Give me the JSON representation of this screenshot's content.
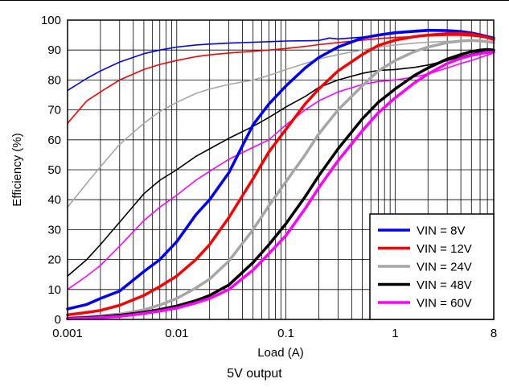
{
  "chart_data": {
    "type": "line",
    "title": "",
    "xlabel": "Load (A)",
    "ylabel": "Efficiency (%)",
    "xscale": "log",
    "xlim": [
      0.001,
      8
    ],
    "ylim": [
      0,
      100
    ],
    "grid": true,
    "legend_position": "bottom-right",
    "x_ticks": [
      {
        "value": 0.001,
        "label": "0.001"
      },
      {
        "value": 0.01,
        "label": "0.01"
      },
      {
        "value": 0.1,
        "label": "0.1"
      },
      {
        "value": 1,
        "label": "1"
      },
      {
        "value": 8,
        "label": "8"
      }
    ],
    "y_ticks": [
      0,
      10,
      20,
      30,
      40,
      50,
      60,
      70,
      80,
      90,
      100
    ],
    "series": [
      {
        "name": "VIN = 8V",
        "color": "#0000ff",
        "style": "bold",
        "x": [
          0.001,
          0.0015,
          0.002,
          0.003,
          0.005,
          0.007,
          0.01,
          0.015,
          0.02,
          0.03,
          0.05,
          0.07,
          0.1,
          0.15,
          0.2,
          0.3,
          0.5,
          0.7,
          1,
          1.5,
          2,
          3,
          4,
          5,
          6,
          7,
          8
        ],
        "y": [
          3.5,
          5,
          7,
          9.5,
          16,
          20,
          26,
          35,
          40,
          49,
          65,
          72,
          78,
          84,
          87.5,
          91,
          94,
          95,
          95.8,
          96.3,
          96.6,
          96.5,
          96.2,
          95.7,
          95.1,
          94.5,
          94
        ]
      },
      {
        "name": "VIN = 12V",
        "color": "#ff0000",
        "style": "bold",
        "x": [
          0.001,
          0.0015,
          0.002,
          0.003,
          0.005,
          0.007,
          0.01,
          0.015,
          0.02,
          0.03,
          0.05,
          0.07,
          0.1,
          0.15,
          0.2,
          0.3,
          0.5,
          0.7,
          1,
          1.5,
          2,
          3,
          4,
          5,
          6,
          7,
          8
        ],
        "y": [
          1.5,
          2.3,
          3,
          4.7,
          8,
          11,
          14.5,
          20,
          25,
          34,
          47,
          56,
          63.5,
          72,
          77,
          83,
          88.5,
          91.5,
          93.3,
          94.5,
          95,
          95.5,
          95.5,
          95.3,
          94.8,
          94.2,
          93.5
        ]
      },
      {
        "name": "VIN = 24V",
        "color": "#a6a6a6",
        "style": "bold",
        "x": [
          0.001,
          0.0015,
          0.002,
          0.003,
          0.005,
          0.007,
          0.01,
          0.015,
          0.02,
          0.03,
          0.05,
          0.07,
          0.1,
          0.15,
          0.2,
          0.3,
          0.5,
          0.7,
          1,
          1.5,
          2,
          3,
          4,
          5,
          6,
          7,
          8
        ],
        "y": [
          0.5,
          0.8,
          1.2,
          1.8,
          3.2,
          4.8,
          7,
          10.5,
          13.5,
          19.5,
          30,
          38,
          46,
          55,
          62,
          70,
          78,
          83,
          86.5,
          89.5,
          91,
          92.5,
          93,
          93.2,
          93,
          92.8,
          92.5
        ]
      },
      {
        "name": "VIN = 48V",
        "color": "#000000",
        "style": "bold",
        "x": [
          0.001,
          0.0015,
          0.002,
          0.003,
          0.005,
          0.007,
          0.01,
          0.015,
          0.02,
          0.03,
          0.05,
          0.07,
          0.1,
          0.15,
          0.2,
          0.3,
          0.5,
          0.7,
          1,
          1.5,
          2,
          3,
          4,
          5,
          6,
          7,
          8
        ],
        "y": [
          0.3,
          0.6,
          0.9,
          1.4,
          2.4,
          3.3,
          4.5,
          6.3,
          8,
          11.5,
          19,
          25,
          32,
          41,
          48,
          57,
          67,
          72.5,
          77,
          81.5,
          84,
          87,
          88.5,
          89.5,
          90,
          90.2,
          90
        ]
      },
      {
        "name": "VIN = 60V",
        "color": "#ff00ff",
        "style": "bold",
        "x": [
          0.001,
          0.0015,
          0.002,
          0.003,
          0.005,
          0.007,
          0.01,
          0.015,
          0.02,
          0.03,
          0.05,
          0.07,
          0.1,
          0.15,
          0.2,
          0.3,
          0.5,
          0.7,
          1,
          1.5,
          2,
          3,
          4,
          5,
          6,
          7,
          8
        ],
        "y": [
          0.2,
          0.4,
          0.6,
          1,
          2,
          2.8,
          3.8,
          5.5,
          7,
          10,
          16.5,
          22,
          28,
          37,
          44,
          53,
          63,
          69,
          74,
          79,
          82,
          85.5,
          87.2,
          88.2,
          88.8,
          89.2,
          89.3
        ]
      },
      {
        "name": "",
        "color": "#0000ff",
        "style": "thin",
        "x": [
          0.001,
          0.0015,
          0.002,
          0.003,
          0.005,
          0.007,
          0.01,
          0.015,
          0.02,
          0.03,
          0.05,
          0.07,
          0.1,
          0.15,
          0.2,
          0.25,
          0.3,
          0.5,
          0.7,
          1,
          1.5,
          2,
          3,
          4,
          5,
          6,
          7,
          8
        ],
        "y": [
          76.5,
          80.5,
          83,
          86,
          88.8,
          90,
          91,
          91.7,
          92,
          92.3,
          92.6,
          92.8,
          93,
          93.1,
          93.2,
          94,
          93.7,
          94.3,
          95,
          95.5,
          96,
          96.3,
          96.3,
          96,
          95.6,
          95,
          94.5,
          94
        ]
      },
      {
        "name": "",
        "color": "#ff0000",
        "style": "thin",
        "x": [
          0.001,
          0.0015,
          0.002,
          0.003,
          0.005,
          0.007,
          0.01,
          0.015,
          0.02,
          0.03,
          0.05,
          0.07,
          0.1,
          0.15,
          0.2,
          0.3,
          0.5,
          0.7,
          1,
          1.5,
          2,
          3,
          4,
          5,
          6,
          7,
          8
        ],
        "y": [
          65.5,
          73,
          76,
          80,
          83.5,
          85.2,
          86.5,
          87.8,
          88.4,
          89,
          89.6,
          90,
          90.5,
          91.2,
          91.8,
          92.5,
          93.3,
          93.8,
          94.2,
          94.5,
          94.7,
          94.9,
          94.9,
          94.7,
          94.4,
          94,
          93.5
        ]
      },
      {
        "name": "",
        "color": "#a6a6a6",
        "style": "thin",
        "x": [
          0.001,
          0.0015,
          0.002,
          0.003,
          0.005,
          0.007,
          0.01,
          0.015,
          0.02,
          0.03,
          0.05,
          0.07,
          0.1,
          0.15,
          0.2,
          0.3,
          0.5,
          0.7,
          1,
          1.5,
          2,
          3,
          4,
          5,
          6,
          7,
          8
        ],
        "y": [
          37.5,
          45.5,
          51,
          58.5,
          65.5,
          69.5,
          72.5,
          75.5,
          77,
          78.5,
          80,
          81.5,
          83.5,
          85.5,
          87,
          88.5,
          90,
          91,
          91.7,
          92.3,
          92.6,
          92.9,
          93,
          93,
          92.9,
          92.7,
          92.5
        ]
      },
      {
        "name": "",
        "color": "#000000",
        "style": "thin",
        "x": [
          0.001,
          0.0015,
          0.002,
          0.003,
          0.005,
          0.007,
          0.01,
          0.015,
          0.02,
          0.03,
          0.05,
          0.07,
          0.1,
          0.15,
          0.2,
          0.3,
          0.5,
          0.7,
          1,
          1.5,
          2,
          3,
          4,
          5,
          6,
          7,
          8
        ],
        "y": [
          14.5,
          20,
          25,
          32.5,
          42,
          46.5,
          50,
          54.5,
          57,
          60.5,
          64.5,
          67.5,
          71,
          74.5,
          77.5,
          80,
          82.2,
          83.2,
          83.5,
          84.2,
          85,
          86.5,
          87.7,
          88.6,
          89.4,
          90,
          90.3
        ]
      },
      {
        "name": "",
        "color": "#ff00ff",
        "style": "thin",
        "x": [
          0.001,
          0.0015,
          0.002,
          0.003,
          0.005,
          0.007,
          0.01,
          0.015,
          0.02,
          0.03,
          0.05,
          0.07,
          0.1,
          0.15,
          0.2,
          0.3,
          0.5,
          0.7,
          1,
          1.5,
          2,
          3,
          4,
          5,
          6,
          7,
          8
        ],
        "y": [
          10,
          14.5,
          18,
          24.5,
          33,
          37.5,
          41.5,
          46.5,
          49.5,
          53.5,
          57.5,
          60,
          65,
          70,
          73,
          76,
          78.5,
          79.5,
          80,
          81,
          82,
          84,
          85.5,
          86.5,
          87.5,
          88.3,
          89
        ]
      }
    ]
  },
  "caption": "5V output"
}
